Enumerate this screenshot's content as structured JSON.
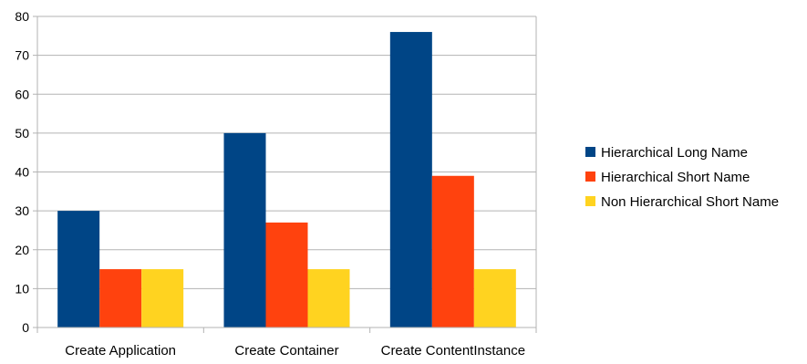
{
  "chart_data": {
    "type": "bar",
    "title": "",
    "xlabel": "",
    "ylabel": "",
    "categories": [
      "Create Application",
      "Create Container",
      "Create ContentInstance"
    ],
    "series": [
      {
        "name": "Hierarchical Long Name",
        "color": "#004586",
        "values": [
          30,
          50,
          76
        ]
      },
      {
        "name": "Hierarchical Short Name",
        "color": "#ff420e",
        "values": [
          15,
          27,
          39
        ]
      },
      {
        "name": "Non Hierarchical Short Name",
        "color": "#ffd320",
        "values": [
          15,
          15,
          15
        ]
      }
    ],
    "ylim": [
      0,
      80
    ],
    "yticks": [
      0,
      10,
      20,
      30,
      40,
      50,
      60,
      70,
      80
    ],
    "grid": true,
    "legend_position": "right"
  }
}
